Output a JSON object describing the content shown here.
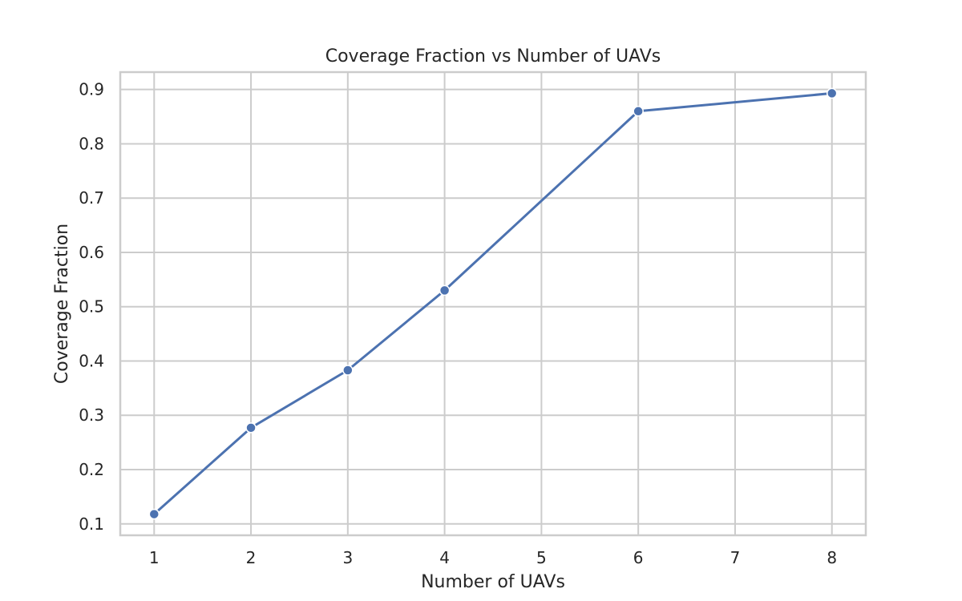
{
  "chart_data": {
    "type": "line",
    "title": "Coverage Fraction vs Number of UAVs",
    "xlabel": "Number of UAVs",
    "ylabel": "Coverage Fraction",
    "x": [
      1,
      2,
      3,
      4,
      6,
      8
    ],
    "series": [
      {
        "values": [
          0.118,
          0.277,
          0.383,
          0.53,
          0.86,
          0.893
        ],
        "color": "#4c72b0",
        "marker": "circle"
      }
    ],
    "x_ticks": [
      1,
      2,
      3,
      4,
      5,
      6,
      7,
      8
    ],
    "x_tick_labels": [
      "1",
      "2",
      "3",
      "4",
      "5",
      "6",
      "7",
      "8"
    ],
    "y_ticks": [
      0.1,
      0.2,
      0.3,
      0.4,
      0.5,
      0.6,
      0.7,
      0.8,
      0.9
    ],
    "y_tick_labels": [
      "0.1",
      "0.2",
      "0.3",
      "0.4",
      "0.5",
      "0.6",
      "0.7",
      "0.8",
      "0.9"
    ],
    "xlim": [
      0.65,
      8.35
    ],
    "ylim": [
      0.079,
      0.932
    ],
    "grid": true,
    "legend": "none",
    "colors": {
      "grid": "#cccccc",
      "frame": "#cccccc",
      "text": "#262626",
      "background": "#ffffff"
    }
  }
}
